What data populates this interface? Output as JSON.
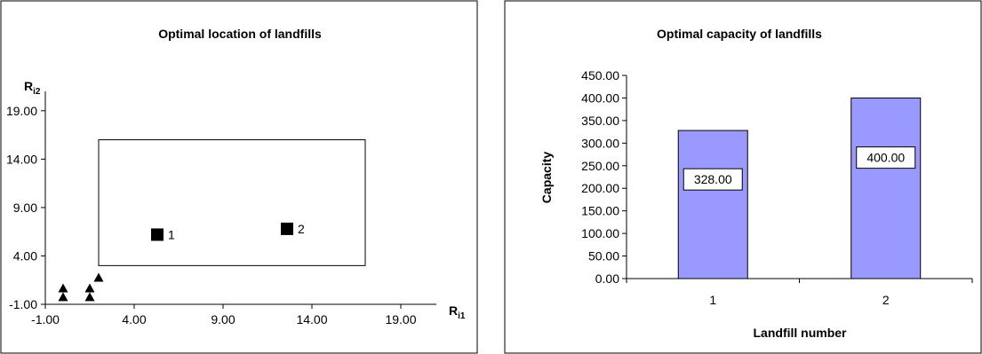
{
  "chart_data": [
    {
      "type": "scatter",
      "title": "Optimal location of landfills",
      "xlabel": "R",
      "xlabel_sub": "i1",
      "ylabel": "R",
      "ylabel_sub": "i2",
      "xlim": [
        -1.0,
        21.0
      ],
      "ylim": [
        -1.0,
        21.0
      ],
      "xticks": [
        "-1.00",
        "4.00",
        "9.00",
        "14.00",
        "19.00"
      ],
      "yticks": [
        "-1.00",
        "4.00",
        "9.00",
        "14.00",
        "19.00"
      ],
      "grid": false,
      "region": {
        "x": [
          2.0,
          17.0
        ],
        "y": [
          3.0,
          16.0
        ]
      },
      "series": [
        {
          "marker": "triangle",
          "points": [
            {
              "x": 0.0,
              "y": -0.3
            },
            {
              "x": 0.0,
              "y": 0.6
            },
            {
              "x": 1.5,
              "y": -0.3
            },
            {
              "x": 1.5,
              "y": 0.6
            },
            {
              "x": 2.0,
              "y": 1.7
            }
          ]
        },
        {
          "marker": "square",
          "points": [
            {
              "x": 5.3,
              "y": 6.2,
              "label": "1"
            },
            {
              "x": 12.6,
              "y": 6.8,
              "label": "2"
            }
          ]
        }
      ]
    },
    {
      "type": "bar",
      "title": "Optimal capacity of landfills",
      "xlabel": "Landfill number",
      "ylabel": "Capacity",
      "categories": [
        "1",
        "2"
      ],
      "values": [
        328.0,
        400.0
      ],
      "data_labels": [
        "328.00",
        "400.00"
      ],
      "ylim": [
        0,
        450
      ],
      "yticks": [
        "0.00",
        "50.00",
        "100.00",
        "150.00",
        "200.00",
        "250.00",
        "300.00",
        "350.00",
        "400.00",
        "450.00"
      ],
      "bar_color": "#9999ff",
      "grid": false
    }
  ]
}
